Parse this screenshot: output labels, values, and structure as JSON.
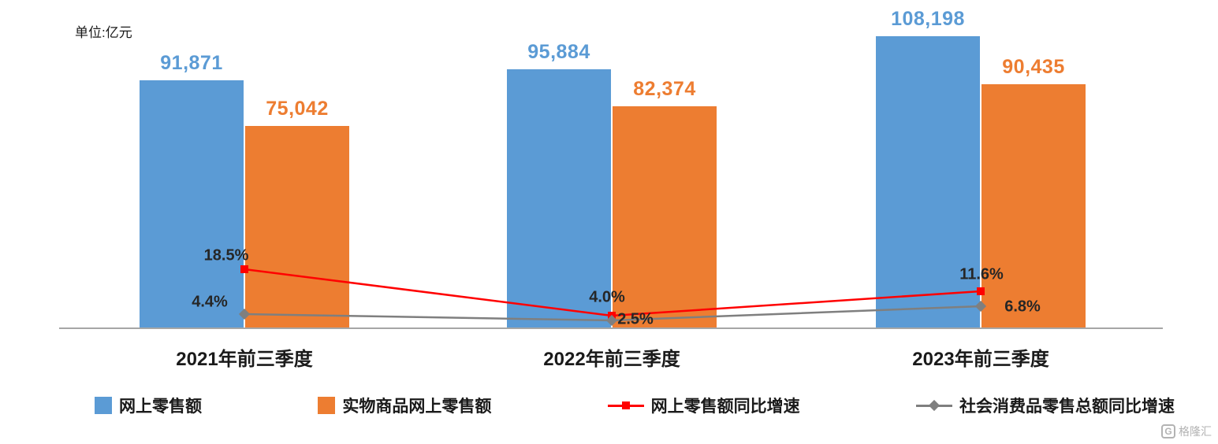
{
  "unit_label": "单位:亿元",
  "chart_data": {
    "type": "bar",
    "title": "",
    "categories": [
      "2021年前三季度",
      "2022年前三季度",
      "2023年前三季度"
    ],
    "series": [
      {
        "name": "网上零售额",
        "kind": "bar",
        "color": "#5b9bd5",
        "values": [
          91871,
          95884,
          108198
        ],
        "labels": [
          "91,871",
          "95,884",
          "108,198"
        ]
      },
      {
        "name": "实物商品网上零售额",
        "kind": "bar",
        "color": "#ed7d31",
        "values": [
          75042,
          82374,
          90435
        ],
        "labels": [
          "75,042",
          "82,374",
          "90,435"
        ]
      },
      {
        "name": "网上零售额同比增速",
        "kind": "line",
        "marker": "square",
        "color": "#ff0000",
        "values": [
          18.5,
          4.0,
          11.6
        ],
        "labels": [
          "18.5%",
          "4.0%",
          "11.6%"
        ]
      },
      {
        "name": "社会消费品零售总额同比增速",
        "kind": "line",
        "marker": "diamond",
        "color": "#7f7f7f",
        "values": [
          4.4,
          2.5,
          6.8
        ],
        "labels": [
          "4.4%",
          "2.5%",
          "6.8%"
        ]
      }
    ],
    "ylim_bars": [
      0,
      110000
    ],
    "ylim_pct": [
      0,
      20
    ],
    "grid": false,
    "legend_position": "bottom"
  },
  "watermark": {
    "logo_letter": "G",
    "text": "格隆汇"
  }
}
